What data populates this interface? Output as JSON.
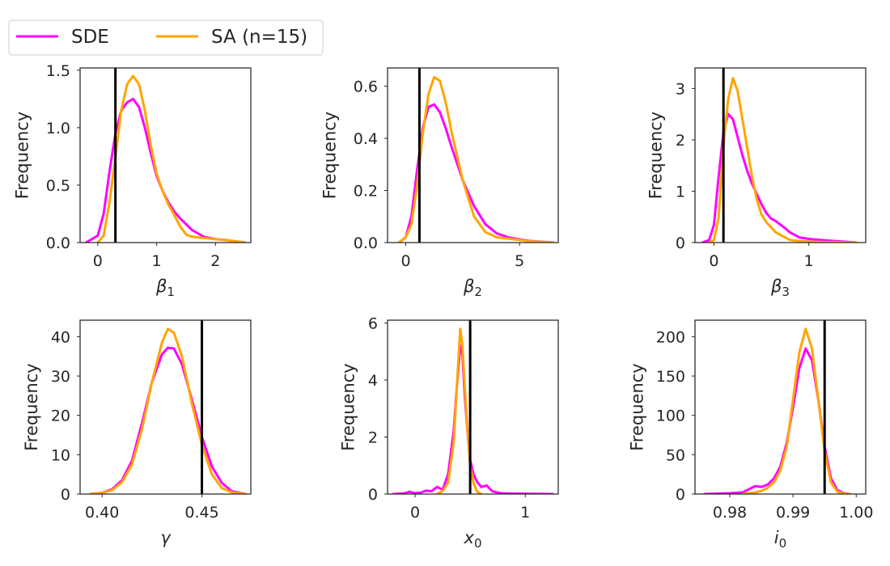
{
  "legend": {
    "entries": [
      {
        "label": "SDE",
        "color": "#ff00ff"
      },
      {
        "label": "SA (n=15)",
        "color": "#ffa500"
      }
    ]
  },
  "chart_data": [
    {
      "type": "line",
      "id": "beta1",
      "xlabel_base": "β",
      "xlabel_sub": "1",
      "ylabel": "Frequency",
      "xlim": [
        -0.3,
        2.6
      ],
      "ylim": [
        0,
        1.52
      ],
      "xticks": [
        0,
        1,
        2
      ],
      "xtick_labels": [
        "0",
        "1",
        "2"
      ],
      "yticks": [
        0,
        0.5,
        1.0,
        1.5
      ],
      "ytick_labels": [
        "0.0",
        "0.5",
        "1.0",
        "1.5"
      ],
      "truth": 0.3,
      "series": [
        {
          "name": "SDE",
          "color": "#ff00ff",
          "x": [
            -0.2,
            0.0,
            0.1,
            0.2,
            0.3,
            0.4,
            0.5,
            0.6,
            0.7,
            0.8,
            0.9,
            1.0,
            1.1,
            1.2,
            1.3,
            1.4,
            1.5,
            1.6,
            1.8,
            2.0,
            2.2,
            2.5
          ],
          "y": [
            0.0,
            0.06,
            0.25,
            0.62,
            0.95,
            1.15,
            1.22,
            1.25,
            1.18,
            1.0,
            0.78,
            0.58,
            0.45,
            0.35,
            0.27,
            0.21,
            0.16,
            0.11,
            0.05,
            0.03,
            0.02,
            0.0
          ]
        },
        {
          "name": "SA (n=15)",
          "color": "#ffa500",
          "x": [
            0.0,
            0.1,
            0.2,
            0.3,
            0.4,
            0.5,
            0.6,
            0.7,
            0.8,
            0.9,
            1.0,
            1.1,
            1.2,
            1.3,
            1.4,
            1.5,
            1.6,
            1.8,
            2.0,
            2.2,
            2.5
          ],
          "y": [
            0.0,
            0.06,
            0.35,
            0.75,
            1.15,
            1.38,
            1.45,
            1.38,
            1.15,
            0.85,
            0.6,
            0.45,
            0.33,
            0.24,
            0.14,
            0.07,
            0.05,
            0.04,
            0.03,
            0.02,
            0.0
          ]
        }
      ]
    },
    {
      "type": "line",
      "id": "beta2",
      "xlabel_base": "β",
      "xlabel_sub": "2",
      "ylabel": "Frequency",
      "xlim": [
        -0.8,
        6.7
      ],
      "ylim": [
        0,
        0.67
      ],
      "xticks": [
        0,
        5
      ],
      "xtick_labels": [
        "0",
        "5"
      ],
      "yticks": [
        0,
        0.2,
        0.4,
        0.6
      ],
      "ytick_labels": [
        "0.0",
        "0.2",
        "0.4",
        "0.6"
      ],
      "truth": 0.6,
      "series": [
        {
          "name": "SDE",
          "color": "#ff00ff",
          "x": [
            -0.3,
            0.0,
            0.25,
            0.5,
            0.75,
            1.0,
            1.25,
            1.5,
            1.75,
            2.0,
            2.5,
            3.0,
            3.5,
            4.0,
            4.5,
            5.0,
            5.5,
            6.5
          ],
          "y": [
            0.0,
            0.02,
            0.1,
            0.28,
            0.44,
            0.52,
            0.53,
            0.5,
            0.44,
            0.37,
            0.24,
            0.14,
            0.07,
            0.035,
            0.02,
            0.012,
            0.006,
            0.0
          ]
        },
        {
          "name": "SA (n=15)",
          "color": "#ffa500",
          "x": [
            -0.3,
            0.0,
            0.25,
            0.5,
            0.75,
            1.0,
            1.25,
            1.5,
            1.75,
            2.0,
            2.5,
            3.0,
            3.5,
            4.0,
            4.5,
            5.0,
            5.5,
            6.5
          ],
          "y": [
            0.0,
            0.02,
            0.07,
            0.22,
            0.42,
            0.57,
            0.635,
            0.62,
            0.54,
            0.43,
            0.24,
            0.1,
            0.04,
            0.02,
            0.015,
            0.01,
            0.005,
            0.0
          ]
        }
      ]
    },
    {
      "type": "line",
      "id": "beta3",
      "xlabel_base": "β",
      "xlabel_sub": "3",
      "ylabel": "Frequency",
      "xlim": [
        -0.2,
        1.6
      ],
      "ylim": [
        0,
        3.4
      ],
      "xticks": [
        0,
        1
      ],
      "xtick_labels": [
        "0",
        "1"
      ],
      "yticks": [
        0,
        1,
        2,
        3
      ],
      "ytick_labels": [
        "0",
        "1",
        "2",
        "3"
      ],
      "truth": 0.1,
      "series": [
        {
          "name": "SDE",
          "color": "#ff00ff",
          "x": [
            -0.12,
            -0.05,
            0.0,
            0.05,
            0.1,
            0.15,
            0.2,
            0.25,
            0.3,
            0.35,
            0.4,
            0.45,
            0.5,
            0.55,
            0.6,
            0.65,
            0.7,
            0.75,
            0.8,
            0.9,
            1.0,
            1.2,
            1.5
          ],
          "y": [
            0.0,
            0.05,
            0.35,
            1.3,
            2.15,
            2.5,
            2.4,
            2.05,
            1.7,
            1.4,
            1.15,
            0.95,
            0.75,
            0.58,
            0.47,
            0.42,
            0.35,
            0.28,
            0.2,
            0.1,
            0.07,
            0.04,
            0.0
          ]
        },
        {
          "name": "SA (n=15)",
          "color": "#ffa500",
          "x": [
            -0.05,
            0.0,
            0.05,
            0.1,
            0.15,
            0.2,
            0.25,
            0.3,
            0.35,
            0.4,
            0.45,
            0.5,
            0.55,
            0.6,
            0.65,
            0.7,
            0.75,
            0.8,
            0.9,
            1.0,
            1.2,
            1.5
          ],
          "y": [
            0.0,
            0.05,
            0.5,
            1.9,
            2.8,
            3.2,
            2.95,
            2.4,
            1.85,
            1.3,
            0.85,
            0.55,
            0.4,
            0.3,
            0.2,
            0.15,
            0.1,
            0.05,
            0.03,
            0.02,
            0.01,
            0.0
          ]
        }
      ]
    },
    {
      "type": "line",
      "id": "gamma",
      "xlabel_base": "γ",
      "xlabel_sub": "",
      "ylabel": "Frequency",
      "xlim": [
        0.389,
        0.4745
      ],
      "ylim": [
        0,
        44.2
      ],
      "xticks": [
        0.4,
        0.45
      ],
      "xtick_labels": [
        "0.40",
        "0.45"
      ],
      "yticks": [
        0,
        10,
        20,
        30,
        40
      ],
      "ytick_labels": [
        "0",
        "10",
        "20",
        "30",
        "40"
      ],
      "truth": 0.45,
      "series": [
        {
          "name": "SDE",
          "color": "#ff00ff",
          "x": [
            0.394,
            0.4,
            0.405,
            0.41,
            0.415,
            0.42,
            0.425,
            0.43,
            0.433,
            0.436,
            0.44,
            0.445,
            0.45,
            0.455,
            0.46,
            0.465,
            0.472
          ],
          "y": [
            0.0,
            0.3,
            1.2,
            3.5,
            8.5,
            18.0,
            28.5,
            35.5,
            37.2,
            37.0,
            33.0,
            24.0,
            14.5,
            7.0,
            2.8,
            0.7,
            0.0
          ]
        },
        {
          "name": "SA (n=15)",
          "color": "#ffa500",
          "x": [
            0.394,
            0.4,
            0.405,
            0.41,
            0.415,
            0.42,
            0.425,
            0.43,
            0.433,
            0.436,
            0.44,
            0.445,
            0.45,
            0.455,
            0.46,
            0.465,
            0.472
          ],
          "y": [
            0.0,
            0.3,
            1.0,
            3.0,
            7.5,
            16.5,
            28.5,
            38.5,
            42.0,
            41.0,
            35.0,
            23.0,
            12.5,
            5.0,
            1.5,
            0.4,
            0.0
          ]
        }
      ]
    },
    {
      "type": "line",
      "id": "x0",
      "xlabel_base": "x",
      "xlabel_sub": "0",
      "ylabel": "Frequency",
      "xlim": [
        -0.25,
        1.3
      ],
      "ylim": [
        0,
        6.1
      ],
      "xticks": [
        0,
        1
      ],
      "xtick_labels": [
        "0",
        "1"
      ],
      "yticks": [
        0,
        2,
        4,
        6
      ],
      "ytick_labels": [
        "0",
        "2",
        "4",
        "6"
      ],
      "truth": 0.5,
      "series": [
        {
          "name": "SDE",
          "color": "#ff00ff",
          "x": [
            -0.2,
            -0.1,
            -0.05,
            0.0,
            0.05,
            0.1,
            0.15,
            0.2,
            0.25,
            0.3,
            0.35,
            0.38,
            0.41,
            0.43,
            0.45,
            0.48,
            0.5,
            0.53,
            0.56,
            0.6,
            0.65,
            0.7,
            0.75,
            0.8,
            1.0,
            1.25
          ],
          "y": [
            0.0,
            0.02,
            0.08,
            0.03,
            0.05,
            0.12,
            0.1,
            0.25,
            0.15,
            0.7,
            2.2,
            3.8,
            5.2,
            4.9,
            3.5,
            2.0,
            1.2,
            0.7,
            0.45,
            0.25,
            0.3,
            0.1,
            0.05,
            0.02,
            0.01,
            0.0
          ]
        },
        {
          "name": "SA (n=15)",
          "color": "#ffa500",
          "x": [
            0.2,
            0.25,
            0.3,
            0.35,
            0.38,
            0.41,
            0.43,
            0.45,
            0.48,
            0.5,
            0.53,
            0.56,
            0.6
          ],
          "y": [
            0.0,
            0.1,
            0.4,
            1.8,
            3.8,
            5.8,
            5.2,
            3.8,
            2.0,
            1.0,
            0.4,
            0.1,
            0.0
          ]
        }
      ]
    },
    {
      "type": "line",
      "id": "i0",
      "xlabel_base": "i",
      "xlabel_sub": "0",
      "ylabel": "Frequency",
      "xlim": [
        0.9745,
        1.0015
      ],
      "ylim": [
        0,
        221
      ],
      "xticks": [
        0.98,
        0.99,
        1.0
      ],
      "xtick_labels": [
        "0.98",
        "0.99",
        "1.00"
      ],
      "yticks": [
        0,
        50,
        100,
        150,
        200
      ],
      "ytick_labels": [
        "0",
        "50",
        "100",
        "150",
        "200"
      ],
      "truth": 0.995,
      "series": [
        {
          "name": "SDE",
          "color": "#ff00ff",
          "x": [
            0.976,
            0.98,
            0.982,
            0.983,
            0.984,
            0.985,
            0.986,
            0.987,
            0.988,
            0.989,
            0.99,
            0.991,
            0.992,
            0.993,
            0.994,
            0.995,
            0.996,
            0.997,
            0.998,
            0.999
          ],
          "y": [
            0.0,
            1.0,
            2.0,
            6.0,
            10.0,
            9.0,
            12.0,
            20.0,
            35.0,
            65.0,
            110.0,
            160.0,
            185.0,
            170.0,
            120.0,
            60.0,
            20.0,
            5.0,
            1.0,
            0.0
          ]
        },
        {
          "name": "SA (n=15)",
          "color": "#ffa500",
          "x": [
            0.982,
            0.984,
            0.985,
            0.986,
            0.987,
            0.988,
            0.989,
            0.99,
            0.991,
            0.992,
            0.993,
            0.994,
            0.995,
            0.996,
            0.997,
            0.998,
            0.999
          ],
          "y": [
            0.0,
            2.0,
            4.0,
            8.0,
            15.0,
            30.0,
            60.0,
            120.0,
            180.0,
            210.0,
            185.0,
            120.0,
            55.0,
            15.0,
            3.0,
            0.5,
            0.0
          ]
        }
      ]
    }
  ]
}
